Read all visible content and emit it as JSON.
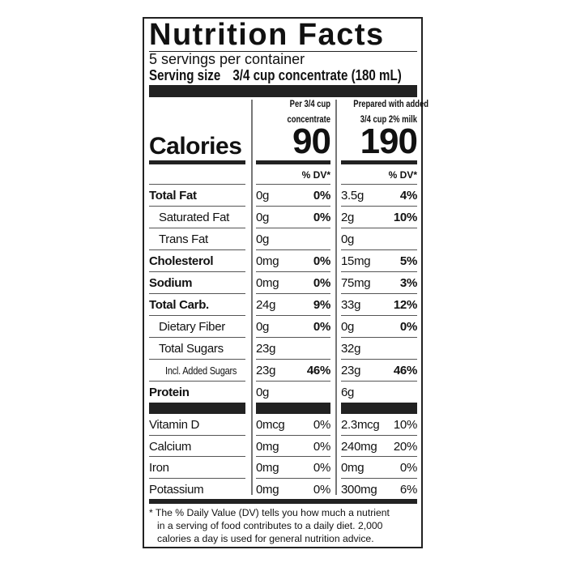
{
  "title": "Nutrition Facts",
  "servings": "5 servings per container",
  "serving_size": {
    "label": "Serving size",
    "value": "3/4 cup concentrate (180 mL)"
  },
  "columns": [
    {
      "header_line1": "Per 3/4 cup",
      "header_line2": "concentrate",
      "calories": "90",
      "dv_label": "% DV*"
    },
    {
      "header_line1": "Prepared with added",
      "header_line2": "3/4 cup 2% milk",
      "calories": "190",
      "dv_label": "% DV*"
    }
  ],
  "calories_label": "Calories",
  "nutrients": [
    {
      "name": "Total Fat",
      "bold": true,
      "indent": 0,
      "c1": "0g",
      "d1": "0%",
      "c2": "3.5g",
      "d2": "4%"
    },
    {
      "name": "Saturated Fat",
      "bold": false,
      "indent": 1,
      "c1": "0g",
      "d1": "0%",
      "c2": "2g",
      "d2": "10%"
    },
    {
      "name": "Trans Fat",
      "bold": false,
      "indent": 1,
      "c1": "0g",
      "d1": "",
      "c2": "0g",
      "d2": ""
    },
    {
      "name": "Cholesterol",
      "bold": true,
      "indent": 0,
      "c1": "0mg",
      "d1": "0%",
      "c2": "15mg",
      "d2": "5%"
    },
    {
      "name": "Sodium",
      "bold": true,
      "indent": 0,
      "c1": "0mg",
      "d1": "0%",
      "c2": "75mg",
      "d2": "3%"
    },
    {
      "name": "Total Carb.",
      "bold": true,
      "indent": 0,
      "c1": "24g",
      "d1": "9%",
      "c2": "33g",
      "d2": "12%"
    },
    {
      "name": "Dietary Fiber",
      "bold": false,
      "indent": 1,
      "c1": "0g",
      "d1": "0%",
      "c2": "0g",
      "d2": "0%"
    },
    {
      "name": "Total Sugars",
      "bold": false,
      "indent": 1,
      "c1": "23g",
      "d1": "",
      "c2": "32g",
      "d2": ""
    },
    {
      "name": "Incl. Added Sugars",
      "bold": false,
      "indent": 2,
      "c1": "23g",
      "d1": "46%",
      "c2": "23g",
      "d2": "46%"
    },
    {
      "name": "Protein",
      "bold": true,
      "indent": 0,
      "c1": "0g",
      "d1": "",
      "c2": "6g",
      "d2": ""
    }
  ],
  "vitamins": [
    {
      "name": "Vitamin D",
      "c1": "0mcg",
      "d1": "0%",
      "c2": "2.3mcg",
      "d2": "10%"
    },
    {
      "name": "Calcium",
      "c1": "0mg",
      "d1": "0%",
      "c2": "240mg",
      "d2": "20%"
    },
    {
      "name": "Iron",
      "c1": "0mg",
      "d1": "0%",
      "c2": "0mg",
      "d2": "0%"
    },
    {
      "name": "Potassium",
      "c1": "0mg",
      "d1": "0%",
      "c2": "300mg",
      "d2": "6%"
    }
  ],
  "footnote": {
    "line1": "* The % Daily Value (DV) tells you how much a nutrient",
    "line2": "in a serving of food contributes to a daily diet. 2,000",
    "line3": "calories a day is used for general nutrition advice."
  }
}
